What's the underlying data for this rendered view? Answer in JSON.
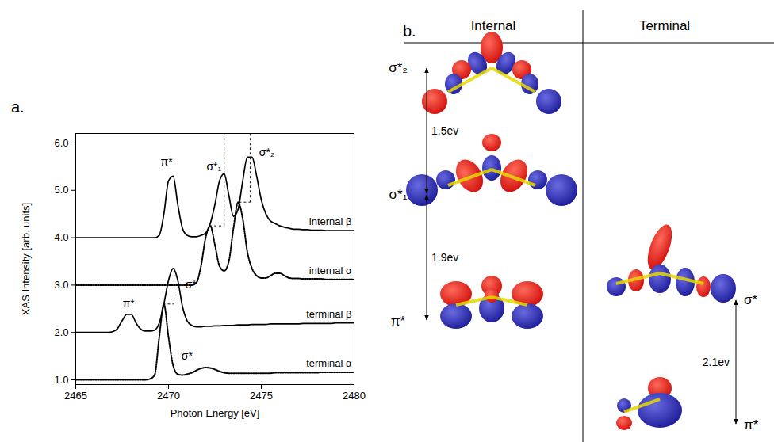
{
  "chart_data": {
    "type": "line",
    "panel_label": "a.",
    "x_label": "Photon Energy [eV]",
    "y_label": "XAS Intensity [arb. units]",
    "xlim": [
      2465,
      2480
    ],
    "xticks": [
      2465,
      2470,
      2475,
      2480
    ],
    "ylim": [
      0.9,
      6.2
    ],
    "yticks": [
      {
        "value": 1,
        "label": "1.0"
      },
      {
        "value": 2,
        "label": "2.0"
      },
      {
        "value": 3,
        "label": "3.0"
      },
      {
        "value": 4,
        "label": "4.0"
      },
      {
        "value": 5,
        "label": "5.0"
      },
      {
        "value": 6,
        "label": "6.0"
      }
    ],
    "grid": false,
    "x": [
      2465,
      2465.25,
      2465.5,
      2465.75,
      2466,
      2466.25,
      2466.5,
      2466.75,
      2467,
      2467.25,
      2467.5,
      2467.75,
      2468,
      2468.25,
      2468.5,
      2468.75,
      2469,
      2469.25,
      2469.5,
      2469.75,
      2470,
      2470.25,
      2470.5,
      2470.75,
      2471,
      2471.25,
      2471.5,
      2471.75,
      2472,
      2472.25,
      2472.5,
      2472.75,
      2473,
      2473.25,
      2473.5,
      2473.75,
      2474,
      2474.25,
      2474.5,
      2474.75,
      2475,
      2475.25,
      2475.5,
      2475.75,
      2476,
      2476.25,
      2476.5,
      2476.75,
      2477,
      2477.25,
      2477.5,
      2477.75,
      2478,
      2478.25,
      2478.5,
      2478.75,
      2479,
      2479.25,
      2479.5,
      2479.75,
      2480
    ],
    "series": [
      {
        "name": "internal β",
        "color": "#000000",
        "line_style": "solid",
        "values": [
          4,
          4,
          4,
          4,
          4,
          4,
          4,
          4,
          4,
          4,
          4,
          4,
          4,
          4,
          4,
          4,
          4,
          4,
          4.05,
          4.5,
          5.2,
          5.3,
          4.7,
          4.2,
          4.05,
          4.02,
          4.02,
          4.05,
          4.1,
          4.3,
          4.7,
          5.2,
          5.35,
          4.9,
          4.45,
          4.6,
          5.2,
          5.7,
          5.7,
          5.3,
          4.8,
          4.5,
          4.35,
          4.3,
          4.25,
          4.22,
          4.2,
          4.18,
          4.18,
          4.17,
          4.17,
          4.16,
          4.16,
          4.16,
          4.15,
          4.15,
          4.15,
          4.15,
          4.15,
          4.15,
          4.15
        ]
      },
      {
        "name": "internal α",
        "color": "#000000",
        "line_style": "dotted",
        "values": [
          3,
          3,
          3,
          3,
          3,
          3,
          3,
          3,
          3,
          3,
          3,
          3,
          3,
          3,
          3,
          3,
          3,
          3,
          3,
          3,
          3,
          3,
          3,
          3,
          3,
          3,
          3.05,
          3.4,
          4.0,
          4.25,
          3.85,
          3.4,
          3.3,
          3.5,
          4.2,
          4.75,
          4.4,
          3.7,
          3.35,
          3.2,
          3.15,
          3.15,
          3.2,
          3.25,
          3.25,
          3.2,
          3.15,
          3.14,
          3.14,
          3.13,
          3.13,
          3.13,
          3.13,
          3.13,
          3.12,
          3.12,
          3.12,
          3.12,
          3.12,
          3.12,
          3.12
        ]
      },
      {
        "name": "terminal β",
        "color": "#000000",
        "line_style": "solid",
        "values": [
          2,
          2,
          2,
          2,
          2,
          2,
          2,
          2,
          2.02,
          2.08,
          2.25,
          2.38,
          2.38,
          2.2,
          2.07,
          2.03,
          2.03,
          2.05,
          2.2,
          2.6,
          3.1,
          3.35,
          3.1,
          2.55,
          2.25,
          2.15,
          2.12,
          2.12,
          2.13,
          2.13,
          2.14,
          2.14,
          2.15,
          2.15,
          2.15,
          2.16,
          2.16,
          2.16,
          2.17,
          2.17,
          2.17,
          2.17,
          2.18,
          2.18,
          2.18,
          2.18,
          2.18,
          2.18,
          2.18,
          2.19,
          2.19,
          2.19,
          2.19,
          2.19,
          2.19,
          2.19,
          2.2,
          2.2,
          2.2,
          2.2,
          2.2
        ]
      },
      {
        "name": "terminal α",
        "color": "#000000",
        "line_style": "dotted",
        "values": [
          1,
          1,
          1,
          1,
          1,
          1,
          1,
          1,
          1,
          1,
          1,
          1,
          1,
          1,
          1,
          1,
          1.02,
          1.1,
          1.9,
          2.6,
          1.9,
          1.3,
          1.12,
          1.1,
          1.12,
          1.15,
          1.2,
          1.24,
          1.26,
          1.25,
          1.22,
          1.18,
          1.15,
          1.14,
          1.14,
          1.14,
          1.14,
          1.14,
          1.14,
          1.14,
          1.14,
          1.14,
          1.14,
          1.15,
          1.15,
          1.15,
          1.15,
          1.15,
          1.15,
          1.15,
          1.15,
          1.15,
          1.15,
          1.16,
          1.16,
          1.16,
          1.16,
          1.16,
          1.16,
          1.16,
          1.16
        ]
      }
    ],
    "annotations": [
      {
        "text": "π*",
        "x": 2469.9,
        "y": 5.6
      },
      {
        "text": "σ*₁",
        "x": 2472.45,
        "y": 5.5
      },
      {
        "text": "σ*₂",
        "x": 2475.3,
        "y": 5.8
      },
      {
        "text": "π*",
        "x": 2467.85,
        "y": 2.6
      },
      {
        "text": "σ*",
        "x": 2471.2,
        "y": 3.0
      },
      {
        "text": "σ*",
        "x": 2471.0,
        "y": 1.5
      }
    ],
    "guides": [
      {
        "x1": 2472.2,
        "y1": 4.25,
        "x2": 2473.0,
        "y2": 4.25
      },
      {
        "x1": 2473.0,
        "y1": 4.25,
        "x2": 2473.0,
        "y2": 6.2
      },
      {
        "x1": 2473.8,
        "y1": 4.75,
        "x2": 2474.4,
        "y2": 4.75
      },
      {
        "x1": 2474.4,
        "y1": 4.75,
        "x2": 2474.4,
        "y2": 6.2
      },
      {
        "x1": 2469.7,
        "y1": 2.6,
        "x2": 2470.3,
        "y2": 2.6
      },
      {
        "x1": 2470.3,
        "y1": 2.6,
        "x2": 2470.3,
        "y2": 3.35
      }
    ]
  },
  "diagram": {
    "panel_label": "b.",
    "columns": [
      {
        "title": "Internal",
        "levels": [
          "σ*₂",
          "σ*₁",
          "π*"
        ],
        "gaps": [
          "1.5ev",
          "1.9ev"
        ]
      },
      {
        "title": "Terminal",
        "levels": [
          "σ*",
          "π*"
        ],
        "gaps": [
          "2.1ev"
        ]
      }
    ]
  }
}
